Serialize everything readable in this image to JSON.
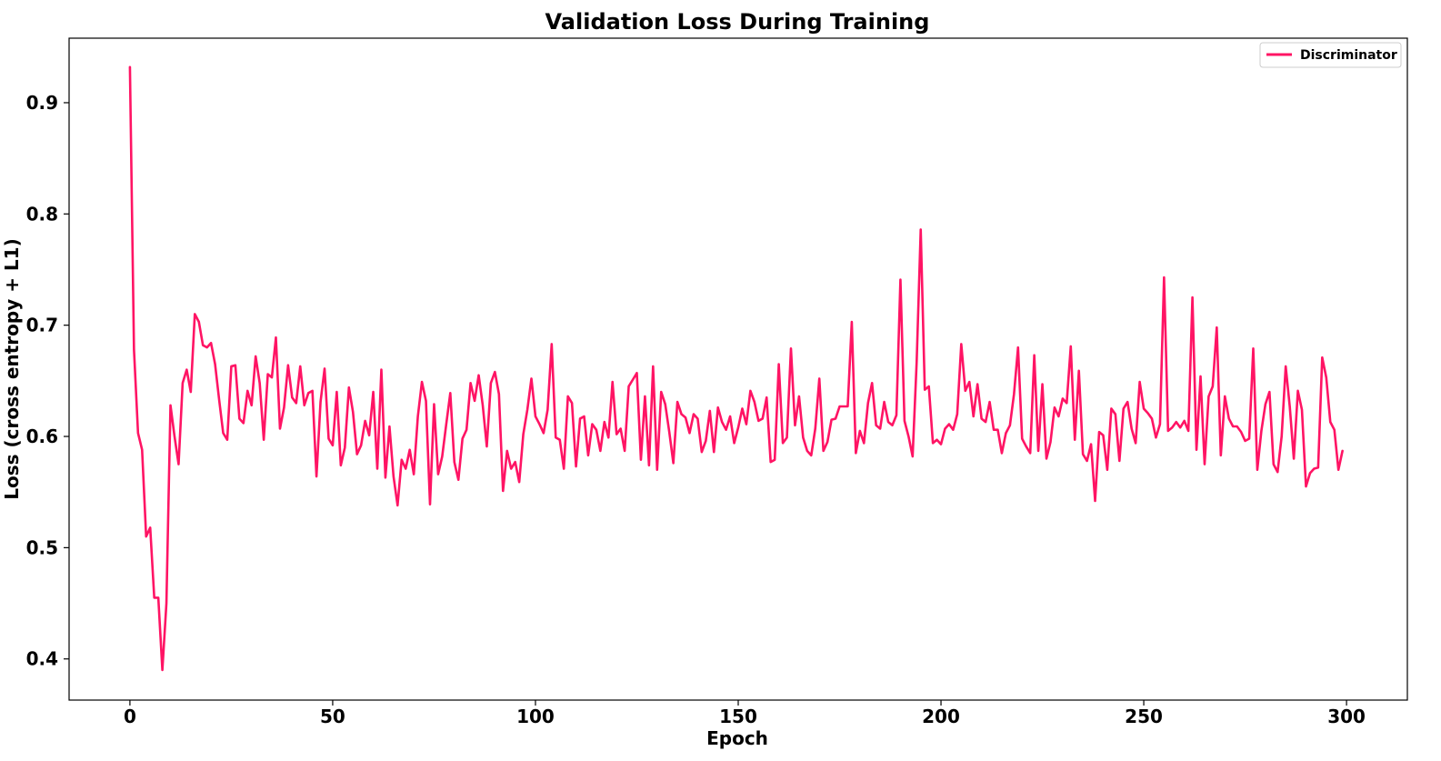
{
  "chart_data": {
    "type": "line",
    "title": "Validation Loss During Training",
    "xlabel": "Epoch",
    "ylabel": "Loss (cross entropy + L1)",
    "xlim": [
      -15,
      315
    ],
    "ylim": [
      0.363,
      0.958
    ],
    "xticks": [
      0,
      50,
      100,
      150,
      200,
      250,
      300
    ],
    "yticks": [
      0.4,
      0.5,
      0.6,
      0.7,
      0.8,
      0.9
    ],
    "xtick_labels": [
      "0",
      "50",
      "100",
      "150",
      "200",
      "250",
      "300"
    ],
    "ytick_labels": [
      "0.4",
      "0.5",
      "0.6",
      "0.7",
      "0.8",
      "0.9"
    ],
    "grid": false,
    "legend_position": "top-right",
    "series": [
      {
        "name": "Discriminator",
        "color": "#ff1464",
        "x_start": 0,
        "x_step": 1,
        "values": [
          0.932,
          0.678,
          0.603,
          0.588,
          0.51,
          0.518,
          0.455,
          0.455,
          0.39,
          0.45,
          0.628,
          0.6,
          0.575,
          0.648,
          0.66,
          0.64,
          0.71,
          0.703,
          0.682,
          0.68,
          0.684,
          0.665,
          0.633,
          0.603,
          0.597,
          0.663,
          0.664,
          0.616,
          0.612,
          0.641,
          0.628,
          0.672,
          0.648,
          0.597,
          0.656,
          0.653,
          0.689,
          0.607,
          0.626,
          0.664,
          0.635,
          0.63,
          0.663,
          0.628,
          0.639,
          0.641,
          0.564,
          0.631,
          0.661,
          0.598,
          0.592,
          0.64,
          0.574,
          0.59,
          0.644,
          0.622,
          0.584,
          0.592,
          0.614,
          0.601,
          0.64,
          0.571,
          0.66,
          0.563,
          0.609,
          0.564,
          0.538,
          0.579,
          0.571,
          0.588,
          0.566,
          0.618,
          0.649,
          0.632,
          0.539,
          0.629,
          0.566,
          0.582,
          0.611,
          0.639,
          0.577,
          0.561,
          0.598,
          0.606,
          0.648,
          0.632,
          0.655,
          0.628,
          0.591,
          0.648,
          0.658,
          0.638,
          0.551,
          0.587,
          0.571,
          0.577,
          0.559,
          0.602,
          0.624,
          0.652,
          0.618,
          0.611,
          0.603,
          0.624,
          0.683,
          0.599,
          0.597,
          0.571,
          0.636,
          0.63,
          0.573,
          0.616,
          0.618,
          0.583,
          0.611,
          0.606,
          0.587,
          0.613,
          0.599,
          0.649,
          0.602,
          0.607,
          0.587,
          0.645,
          0.651,
          0.657,
          0.579,
          0.636,
          0.574,
          0.663,
          0.57,
          0.64,
          0.629,
          0.604,
          0.576,
          0.631,
          0.62,
          0.617,
          0.603,
          0.62,
          0.616,
          0.586,
          0.596,
          0.623,
          0.586,
          0.626,
          0.613,
          0.606,
          0.618,
          0.594,
          0.608,
          0.625,
          0.611,
          0.641,
          0.631,
          0.614,
          0.616,
          0.635,
          0.577,
          0.579,
          0.665,
          0.594,
          0.599,
          0.679,
          0.61,
          0.636,
          0.599,
          0.587,
          0.583,
          0.607,
          0.652,
          0.587,
          0.595,
          0.615,
          0.616,
          0.627,
          0.627,
          0.627,
          0.703,
          0.585,
          0.605,
          0.594,
          0.63,
          0.648,
          0.61,
          0.607,
          0.631,
          0.613,
          0.61,
          0.619,
          0.741,
          0.614,
          0.6,
          0.582,
          0.667,
          0.786,
          0.642,
          0.645,
          0.594,
          0.597,
          0.593,
          0.607,
          0.611,
          0.606,
          0.62,
          0.683,
          0.641,
          0.649,
          0.618,
          0.647,
          0.616,
          0.613,
          0.631,
          0.606,
          0.606,
          0.585,
          0.603,
          0.61,
          0.638,
          0.68,
          0.598,
          0.591,
          0.585,
          0.673,
          0.587,
          0.647,
          0.58,
          0.595,
          0.626,
          0.618,
          0.634,
          0.63,
          0.681,
          0.597,
          0.659,
          0.584,
          0.578,
          0.593,
          0.542,
          0.604,
          0.601,
          0.57,
          0.625,
          0.62,
          0.578,
          0.625,
          0.631,
          0.607,
          0.594,
          0.649,
          0.625,
          0.621,
          0.616,
          0.599,
          0.611,
          0.743,
          0.605,
          0.608,
          0.613,
          0.608,
          0.614,
          0.605,
          0.725,
          0.588,
          0.654,
          0.575,
          0.636,
          0.645,
          0.698,
          0.583,
          0.636,
          0.616,
          0.609,
          0.609,
          0.604,
          0.596,
          0.598,
          0.679,
          0.57,
          0.605,
          0.629,
          0.64,
          0.575,
          0.568,
          0.6,
          0.663,
          0.627,
          0.58,
          0.641,
          0.624,
          0.555,
          0.567,
          0.571,
          0.572,
          0.671,
          0.653,
          0.613,
          0.606,
          0.57,
          0.587
        ]
      }
    ]
  }
}
